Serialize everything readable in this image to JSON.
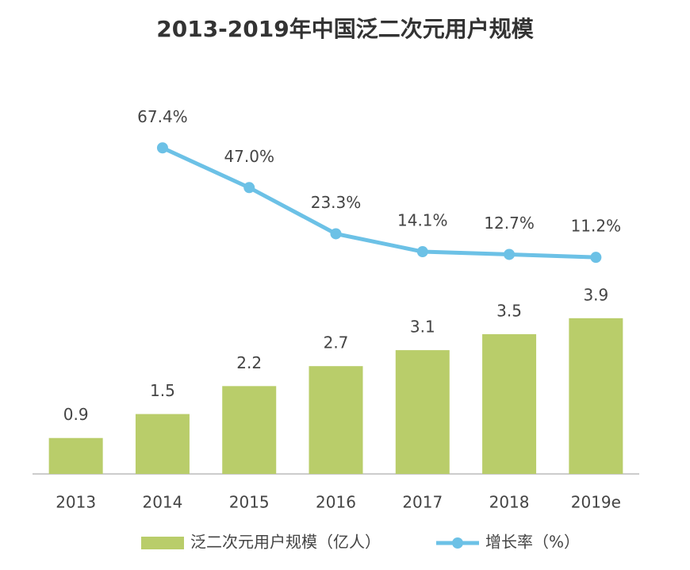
{
  "chart_data": {
    "type": "bar",
    "title": "2013-2019年中国泛二次元用户规模",
    "categories": [
      "2013",
      "2014",
      "2015",
      "2016",
      "2017",
      "2018",
      "2019e"
    ],
    "ylim": [
      0,
      10
    ],
    "y2lim": [
      -100,
      105
    ],
    "series": [
      {
        "name": "泛二次元用户规模（亿人）",
        "type": "bar",
        "color": "#b9cd6a",
        "values": [
          0.9,
          1.5,
          2.2,
          2.7,
          3.1,
          3.5,
          3.9
        ]
      },
      {
        "name": "增长率（%）",
        "type": "line",
        "axis": "y2",
        "color": "#6cc1e6",
        "values": [
          null,
          67.4,
          47.0,
          23.3,
          14.1,
          12.7,
          11.2
        ],
        "value_labels": [
          null,
          "67.4%",
          "47.0%",
          "23.3%",
          "14.1%",
          "12.7%",
          "11.2%"
        ]
      }
    ]
  }
}
